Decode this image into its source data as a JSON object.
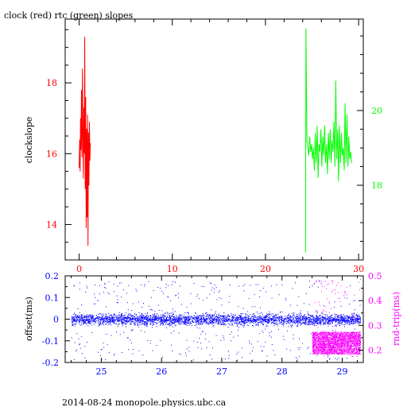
{
  "page": {
    "title": "clock (red) rtc (green) slopes",
    "footer": "2014-08-24 monopole.physics.ubc.ca"
  },
  "colors": {
    "clock": "#ff0000",
    "rtc": "#00ff00",
    "offset": "#0000ff",
    "rndtrip": "#ff00ff",
    "frame": "#000000"
  },
  "chart_data": [
    {
      "type": "line",
      "title": "clock (red) rtc (green) slopes",
      "ylabel": "clockslope",
      "y2label": "",
      "xlim": [
        -1.5,
        30.5
      ],
      "ylim": [
        13.0,
        19.8
      ],
      "y2lim": [
        16.0,
        22.45
      ],
      "x_ticks": [
        0,
        10,
        20,
        30
      ],
      "y_ticks": [
        14,
        16,
        18
      ],
      "y2_ticks": [
        18,
        20
      ],
      "grid": false,
      "series": [
        {
          "name": "clock",
          "axis": "left",
          "color": "#ff0000",
          "points": [
            [
              0.0,
              15.6
            ],
            [
              0.05,
              16.4
            ],
            [
              0.1,
              15.5
            ],
            [
              0.15,
              17.0
            ],
            [
              0.2,
              16.1
            ],
            [
              0.25,
              17.8
            ],
            [
              0.3,
              15.9
            ],
            [
              0.35,
              18.4
            ],
            [
              0.4,
              16.5
            ],
            [
              0.45,
              15.3
            ],
            [
              0.5,
              17.3
            ],
            [
              0.55,
              16.0
            ],
            [
              0.6,
              19.3
            ],
            [
              0.65,
              15.0
            ],
            [
              0.7,
              17.6
            ],
            [
              0.75,
              13.9
            ],
            [
              0.8,
              16.7
            ],
            [
              0.85,
              14.2
            ],
            [
              0.9,
              17.1
            ],
            [
              0.95,
              13.4
            ],
            [
              1.0,
              16.6
            ],
            [
              1.05,
              15.1
            ],
            [
              1.1,
              16.9
            ],
            [
              1.15,
              15.8
            ],
            [
              1.2,
              16.3
            ]
          ]
        },
        {
          "name": "rtc",
          "axis": "right",
          "color": "#00ff00",
          "points": [
            [
              24.3,
              16.2
            ],
            [
              24.35,
              22.2
            ],
            [
              24.45,
              19.2
            ],
            [
              24.55,
              19.0
            ],
            [
              24.65,
              18.8
            ],
            [
              24.75,
              19.3
            ],
            [
              24.85,
              18.9
            ],
            [
              24.95,
              19.1
            ],
            [
              25.05,
              18.7
            ],
            [
              25.15,
              19.0
            ],
            [
              25.25,
              18.4
            ],
            [
              25.35,
              19.4
            ],
            [
              25.45,
              18.6
            ],
            [
              25.55,
              19.6
            ],
            [
              25.65,
              18.2
            ],
            [
              25.75,
              19.1
            ],
            [
              25.85,
              18.9
            ],
            [
              25.95,
              19.5
            ],
            [
              26.05,
              18.5
            ],
            [
              26.15,
              19.3
            ],
            [
              26.25,
              18.8
            ],
            [
              26.35,
              19.6
            ],
            [
              26.45,
              18.6
            ],
            [
              26.55,
              19.1
            ],
            [
              26.65,
              18.3
            ],
            [
              26.75,
              19.4
            ],
            [
              26.85,
              18.7
            ],
            [
              26.95,
              19.5
            ],
            [
              27.05,
              18.6
            ],
            [
              27.15,
              19.2
            ],
            [
              27.25,
              18.9
            ],
            [
              27.35,
              19.7
            ],
            [
              27.45,
              18.5
            ],
            [
              27.55,
              20.8
            ],
            [
              27.65,
              18.7
            ],
            [
              27.75,
              19.5
            ],
            [
              27.85,
              18.1
            ],
            [
              27.95,
              19.6
            ],
            [
              28.05,
              18.6
            ],
            [
              28.15,
              19.4
            ],
            [
              28.25,
              18.8
            ],
            [
              28.35,
              19.0
            ],
            [
              28.45,
              18.4
            ],
            [
              28.55,
              20.2
            ],
            [
              28.65,
              18.6
            ],
            [
              28.75,
              19.9
            ],
            [
              28.85,
              18.5
            ],
            [
              28.95,
              19.3
            ],
            [
              29.05,
              18.7
            ],
            [
              29.15,
              18.9
            ],
            [
              29.25,
              18.6
            ]
          ]
        }
      ]
    },
    {
      "type": "scatter",
      "ylabel": "offset(ms)",
      "y2label": "rnd-trip(ms)",
      "xlim": [
        24.4,
        29.35
      ],
      "ylim": [
        -0.2,
        0.2
      ],
      "y2lim": [
        0.15,
        0.5
      ],
      "x_ticks": [
        25,
        26,
        27,
        28,
        29
      ],
      "y_ticks": [
        -0.2,
        -0.1,
        0,
        0.1,
        0.2
      ],
      "y2_ticks": [
        0.2,
        0.3,
        0.4,
        0.5
      ],
      "grid": false,
      "series": [
        {
          "name": "offset",
          "axis": "left",
          "color": "#0000ff",
          "x_range": [
            24.5,
            29.3
          ],
          "band_center": 0.0,
          "band_halfwidth": 0.02,
          "outlier_range": [
            -0.19,
            0.18
          ]
        },
        {
          "name": "rnd-trip",
          "axis": "right",
          "color": "#ff00ff",
          "x_range": [
            28.5,
            29.3
          ],
          "band_range": [
            0.185,
            0.275
          ],
          "outlier_range": [
            0.175,
            0.49
          ]
        }
      ]
    }
  ]
}
